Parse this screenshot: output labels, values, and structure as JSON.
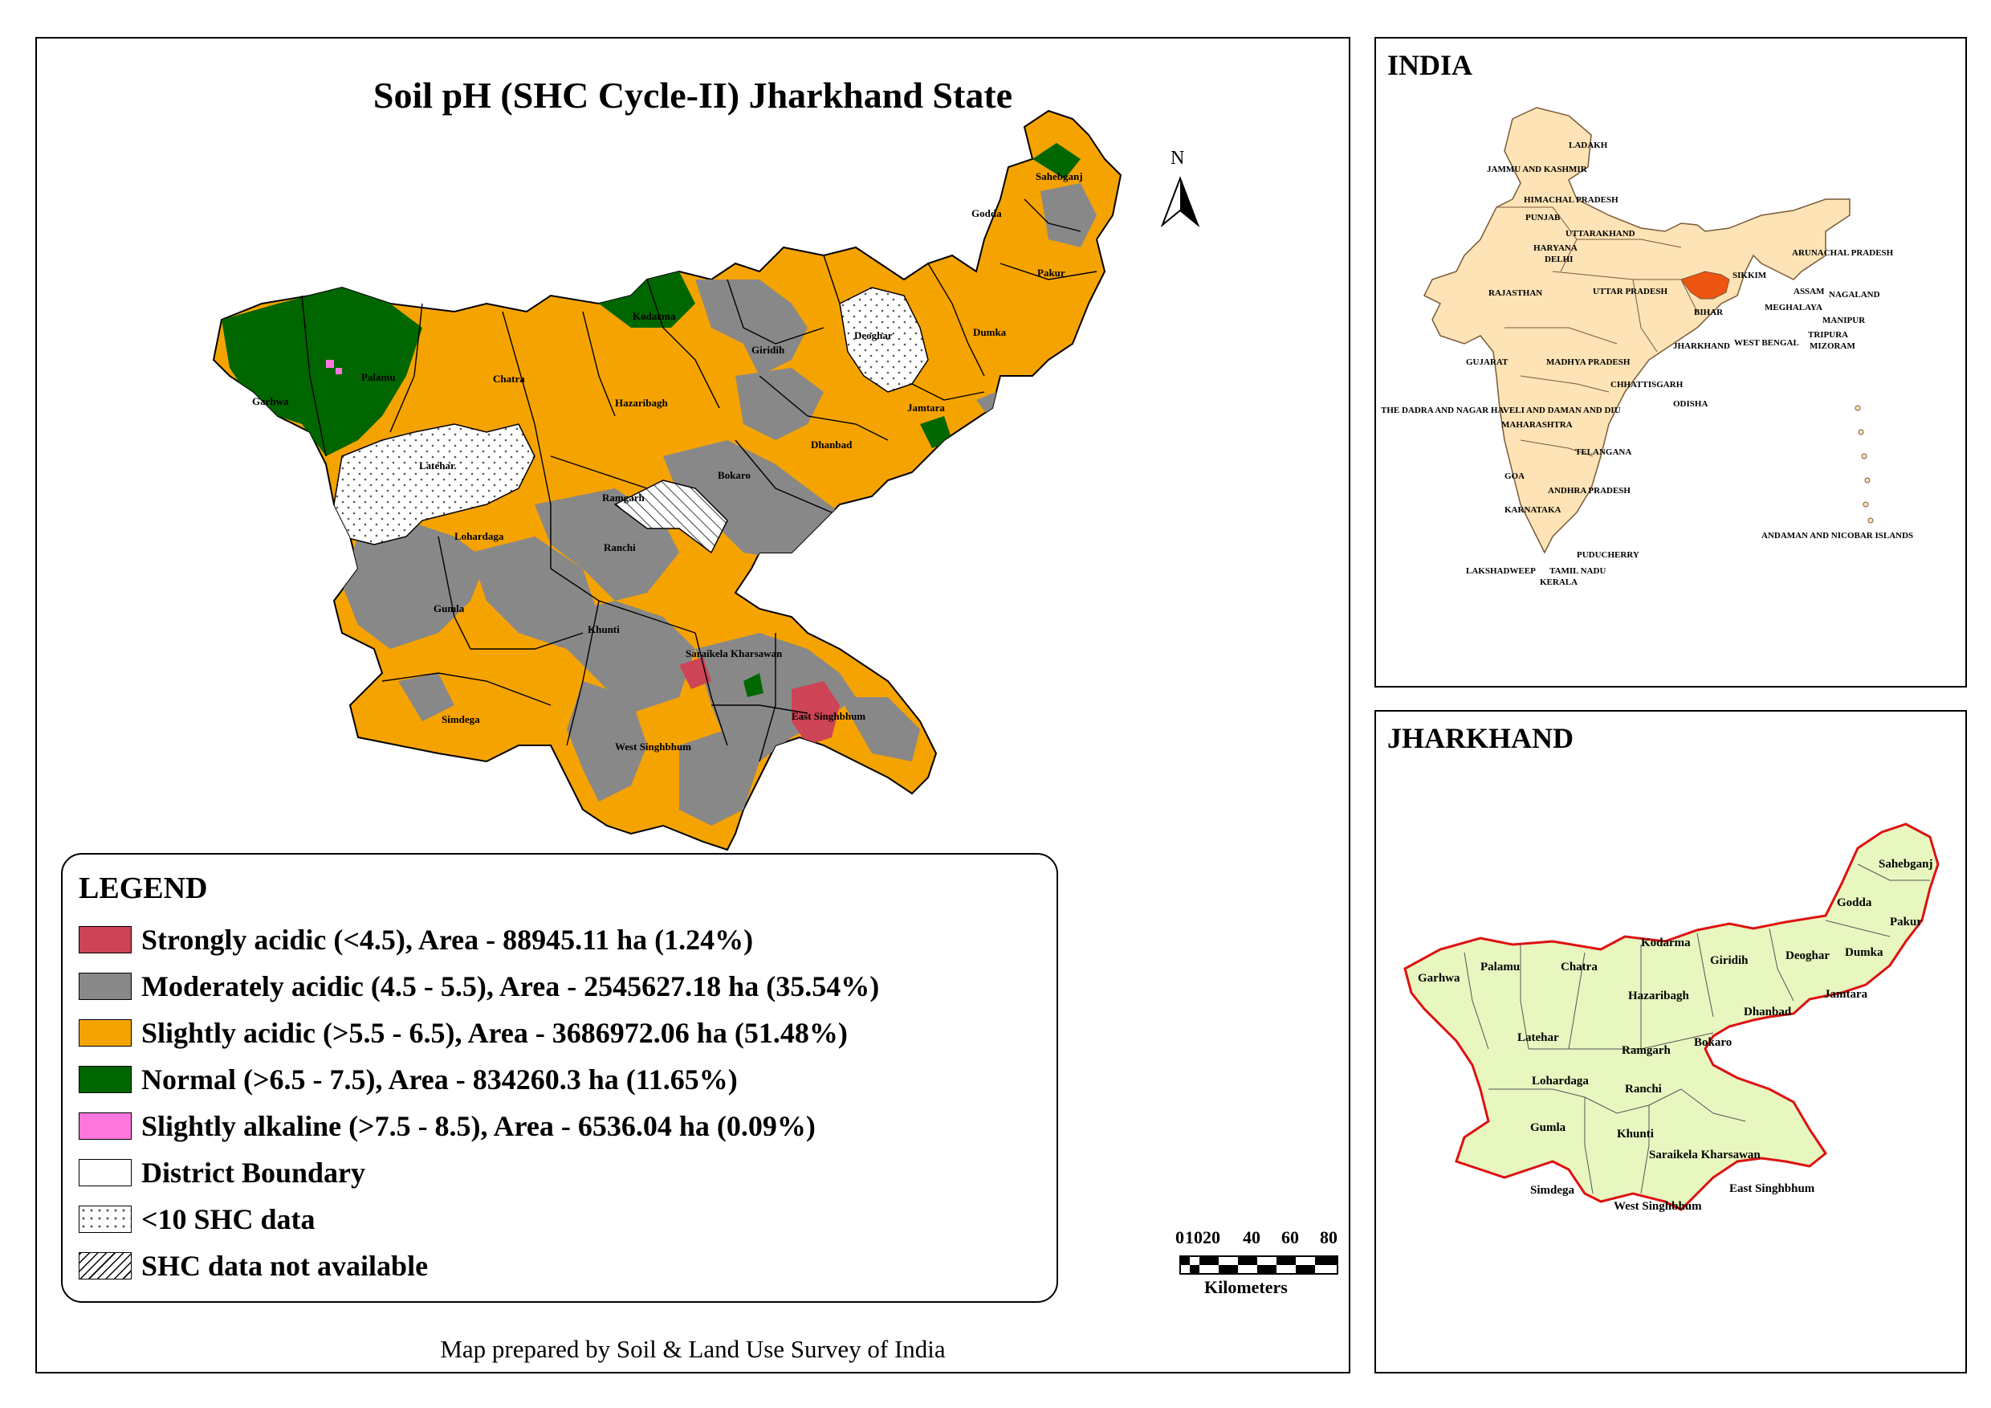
{
  "title": "Soil pH (SHC Cycle-II) Jharkhand State",
  "north_label": "N",
  "legend": {
    "title": "LEGEND",
    "items": [
      {
        "label": "Strongly acidic (<4.5), Area - 88945.11 ha (1.24%)",
        "color": "#cc4455",
        "area_ha": 88945.11,
        "percent": 1.24
      },
      {
        "label": "Moderately acidic (4.5 - 5.5), Area - 2545627.18 ha (35.54%)",
        "color": "#888888",
        "area_ha": 2545627.18,
        "percent": 35.54
      },
      {
        "label": "Slightly acidic (>5.5 - 6.5), Area - 3686972.06 ha (51.48%)",
        "color": "#f5a300",
        "area_ha": 3686972.06,
        "percent": 51.48
      },
      {
        "label": "Normal (>6.5 - 7.5), Area - 834260.3 ha (11.65%)",
        "color": "#006600",
        "area_ha": 834260.3,
        "percent": 11.65
      },
      {
        "label": "Slightly alkaline (>7.5 - 8.5), Area - 6536.04 ha (0.09%)",
        "color": "#ff77dd",
        "area_ha": 6536.04,
        "percent": 0.09
      },
      {
        "label": "District Boundary",
        "color": "#ffffff"
      },
      {
        "label": "<10 SHC data",
        "color": "#ffffff",
        "pattern": "dots"
      },
      {
        "label": "SHC data not available",
        "color": "#ffffff",
        "pattern": "hatch"
      }
    ]
  },
  "scale_bar": {
    "ticks": [
      "0",
      "10",
      "20",
      "40",
      "60",
      "80"
    ],
    "unit": "Kilometers"
  },
  "credit": "Map prepared by Soil & Land Use Survey of India",
  "main_map": {
    "districts": [
      "Garhwa",
      "Palamu",
      "Chatra",
      "Kodarma",
      "Giridih",
      "Deoghar",
      "Godda",
      "Sahebganj",
      "Pakur",
      "Dumka",
      "Jamtara",
      "Dhanbad",
      "Bokaro",
      "Hazaribagh",
      "Ramgarh",
      "Latehar",
      "Lohardaga",
      "Ranchi",
      "Gumla",
      "Khunti",
      "Saraikela Kharsawan",
      "East Singhbhum",
      "West Singhbhum",
      "Simdega"
    ]
  },
  "india_inset": {
    "title": "INDIA",
    "highlight_color": "#ee5511",
    "base_color": "#fde3b5",
    "labels": [
      "LADAKH",
      "JAMMU AND KASHMIR",
      "HIMACHAL PRADESH",
      "PUNJAB",
      "UTTARAKHAND",
      "HARYANA",
      "DELHI",
      "RAJASTHAN",
      "UTTAR PRADESH",
      "SIKKIM",
      "ARUNACHAL PRADESH",
      "ASSAM",
      "NAGALAND",
      "MEGHALAYA",
      "MANIPUR",
      "BIHAR",
      "TRIPURA",
      "MIZORAM",
      "WEST BENGAL",
      "JHARKHAND",
      "GUJARAT",
      "MADHYA PRADESH",
      "CHHATTISGARH",
      "THE DADRA AND NAGAR HAVELI AND DAMAN AND DIU",
      "ODISHA",
      "MAHARASHTRA",
      "TELANGANA",
      "GOA",
      "ANDHRA PRADESH",
      "KARNATAKA",
      "PUDUCHERRY",
      "LAKSHADWEEP",
      "TAMIL NADU",
      "KERALA",
      "ANDAMAN AND NICOBAR ISLANDS"
    ]
  },
  "jharkhand_inset": {
    "title": "JHARKHAND",
    "fill_color": "#e8f7c0",
    "boundary_color": "#dd1111"
  }
}
